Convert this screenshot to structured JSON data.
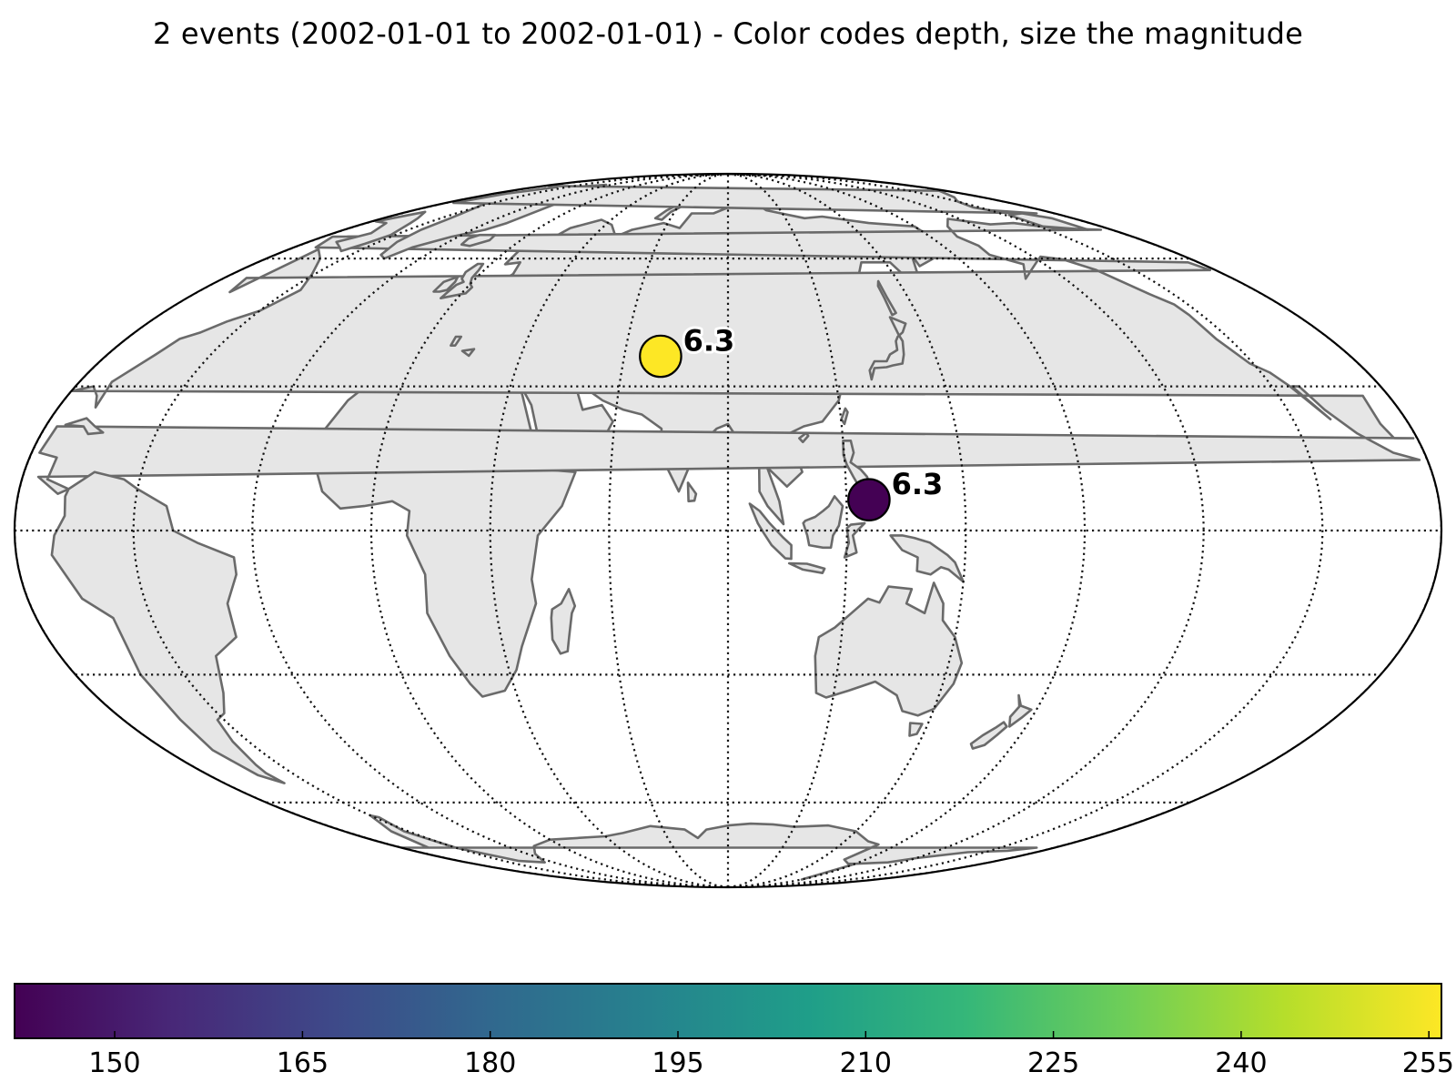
{
  "title": "2 events (2002-01-01 to 2002-01-01) - Color codes depth, size the magnitude",
  "map": {
    "projection": "Mollweide",
    "central_longitude": 90,
    "meridians_deg": [
      -90,
      -60,
      -30,
      0,
      30,
      60,
      90,
      120,
      150,
      180,
      210,
      240,
      270
    ],
    "parallels_deg": [
      -60,
      -30,
      0,
      30,
      60
    ],
    "land_color": "#e6e6e6",
    "coast_color": "#6a6a6a"
  },
  "events": [
    {
      "lat": 36.6,
      "lon": 70.5,
      "depth_km": 256,
      "magnitude": 6.3,
      "label": "6.3"
    },
    {
      "lat": 6.3,
      "lon": 125.7,
      "depth_km": 142,
      "magnitude": 6.3,
      "label": "6.3"
    }
  ],
  "colorbar": {
    "colormap": "viridis",
    "min": 142,
    "max": 256,
    "ticks": [
      "150",
      "165",
      "180",
      "195",
      "210",
      "225",
      "240",
      "255"
    ],
    "stops": [
      "#440154",
      "#482878",
      "#3e4989",
      "#31688e",
      "#26828e",
      "#1f9e89",
      "#35b779",
      "#6ece58",
      "#b5de2b",
      "#fde725"
    ]
  }
}
